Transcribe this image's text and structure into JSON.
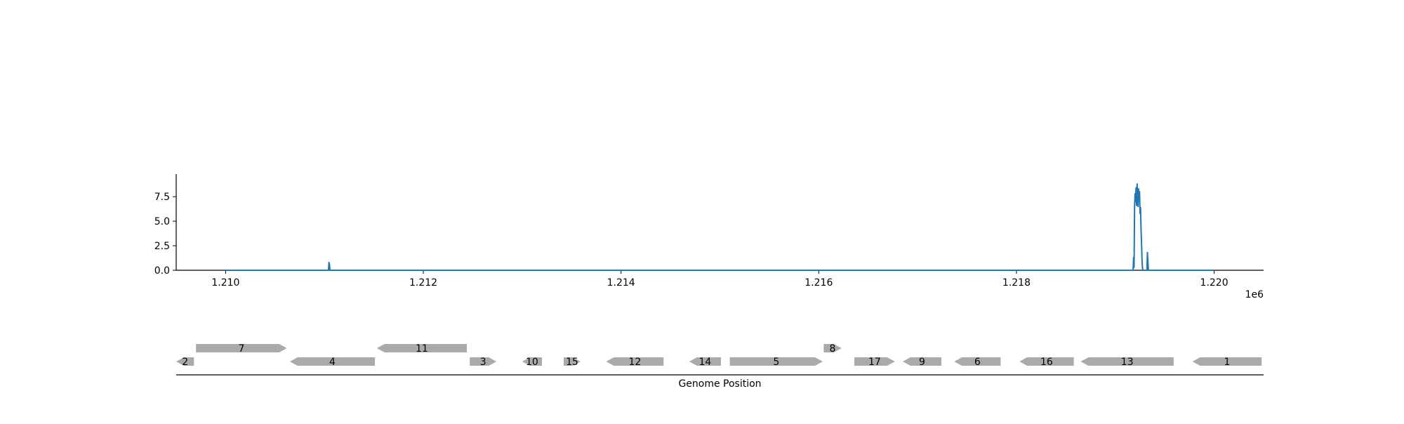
{
  "chart_data": [
    {
      "type": "line",
      "title": "",
      "xlabel": "",
      "ylabel": "",
      "xlim": [
        1209500,
        1220500
      ],
      "ylim": [
        0,
        9.8
      ],
      "x_offset_label": "1e6",
      "xticks": [
        1210000,
        1212000,
        1214000,
        1216000,
        1218000,
        1220000
      ],
      "xtick_labels": [
        "1.210",
        "1.212",
        "1.214",
        "1.216",
        "1.218",
        "1.220"
      ],
      "yticks": [
        0,
        2.5,
        5,
        7.5
      ],
      "ytick_labels": [
        "0.0",
        "2.5",
        "5.0",
        "7.5"
      ],
      "grid": false,
      "series": [
        {
          "color": "#1f77b4",
          "x": [
            1210000,
            1211040,
            1211045,
            1211050,
            1211055,
            1211060,
            1219180,
            1219185,
            1219190,
            1219195,
            1219200,
            1219205,
            1219210,
            1219215,
            1219220,
            1219225,
            1219230,
            1219235,
            1219240,
            1219245,
            1219250,
            1219255,
            1219260,
            1219265,
            1219270,
            1219275,
            1219280,
            1219285,
            1219290,
            1219300,
            1219320,
            1219325,
            1219330,
            1219335,
            1219340,
            1220000
          ],
          "y": [
            0,
            0,
            0.8,
            0.6,
            0,
            0,
            0,
            1.3,
            0.3,
            6.5,
            7.8,
            7.0,
            8.4,
            6.6,
            8.8,
            7.4,
            6.5,
            8.3,
            7.2,
            8.0,
            5.8,
            6.4,
            4.2,
            2.8,
            1.1,
            0.2,
            0,
            0,
            0,
            0,
            0,
            1.8,
            0.9,
            0,
            0,
            0
          ]
        }
      ]
    },
    {
      "type": "gene-track",
      "title": "",
      "xlabel": "Genome Position",
      "xlim": [
        1209500,
        1220500
      ],
      "feature_color": "#aaaaaa",
      "features": [
        {
          "label": "2",
          "start": 1209500,
          "end": 1209680,
          "strand": "-",
          "row": 0
        },
        {
          "label": "7",
          "start": 1209700,
          "end": 1210620,
          "strand": "+",
          "row": 1
        },
        {
          "label": "4",
          "start": 1210650,
          "end": 1211510,
          "strand": "-",
          "row": 0
        },
        {
          "label": "11",
          "start": 1211530,
          "end": 1212440,
          "strand": "-",
          "row": 1
        },
        {
          "label": "3",
          "start": 1212470,
          "end": 1212740,
          "strand": "+",
          "row": 0
        },
        {
          "label": "10",
          "start": 1213000,
          "end": 1213200,
          "strand": "-",
          "row": 0
        },
        {
          "label": "15",
          "start": 1213420,
          "end": 1213590,
          "strand": "+",
          "row": 0
        },
        {
          "label": "12",
          "start": 1213850,
          "end": 1214430,
          "strand": "-",
          "row": 0
        },
        {
          "label": "14",
          "start": 1214690,
          "end": 1215010,
          "strand": "-",
          "row": 0
        },
        {
          "label": "5",
          "start": 1215100,
          "end": 1216040,
          "strand": "+",
          "row": 0
        },
        {
          "label": "8",
          "start": 1216050,
          "end": 1216230,
          "strand": "+",
          "row": 1
        },
        {
          "label": "17",
          "start": 1216360,
          "end": 1216770,
          "strand": "+",
          "row": 0
        },
        {
          "label": "9",
          "start": 1216850,
          "end": 1217240,
          "strand": "-",
          "row": 0
        },
        {
          "label": "6",
          "start": 1217370,
          "end": 1217840,
          "strand": "-",
          "row": 0
        },
        {
          "label": "16",
          "start": 1218030,
          "end": 1218580,
          "strand": "-",
          "row": 0
        },
        {
          "label": "13",
          "start": 1218650,
          "end": 1219590,
          "strand": "-",
          "row": 0
        },
        {
          "label": "1",
          "start": 1219780,
          "end": 1220480,
          "strand": "-",
          "row": 0
        }
      ]
    }
  ]
}
